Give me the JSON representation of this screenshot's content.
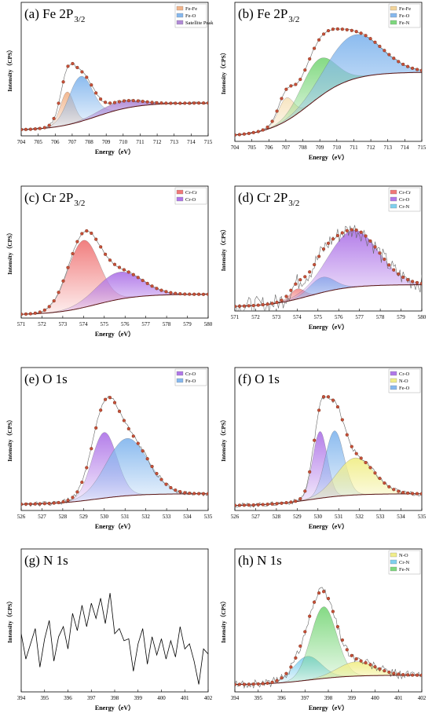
{
  "chart_data": [
    {
      "type": "line",
      "panel": "a",
      "title_main": "(a) Fe 2P",
      "title_sub": "3/2",
      "xlabel": "Energy（eV）",
      "ylabel": "Intensity（CPS）",
      "xlim": [
        704,
        715
      ],
      "xticks": [
        "704",
        "705",
        "706",
        "707",
        "708",
        "709",
        "710",
        "711",
        "712",
        "713",
        "714",
        "715"
      ],
      "legend": [
        {
          "name": "Fe-Fe",
          "color": "#f2b48a"
        },
        {
          "name": "Fe-O",
          "color": "#86b8ee"
        },
        {
          "name": "Satellite Peak",
          "color": "#b08ad6"
        }
      ],
      "legend_position": "top-right",
      "background": [
        0.05,
        0.3
      ],
      "raw_noise": 0.012,
      "peaks": [
        {
          "name": "Fe-Fe",
          "center": 706.7,
          "height": 0.3,
          "width": 0.4,
          "color": "#f2b48a"
        },
        {
          "name": "Fe-O",
          "center": 707.5,
          "height": 0.41,
          "width": 0.7,
          "color": "#86b8ee"
        },
        {
          "name": "Satellite Peak",
          "center": 709.8,
          "height": 0.07,
          "width": 1.2,
          "color": "#b08ad6"
        }
      ]
    },
    {
      "type": "line",
      "panel": "b",
      "title_main": "(b) Fe 2P",
      "title_sub": "3/2",
      "xlabel": "Energy（eV）",
      "ylabel": "Intensity（CPS）",
      "xlim": [
        704,
        715
      ],
      "xticks": [
        "704",
        "705",
        "706",
        "707",
        "708",
        "709",
        "710",
        "711",
        "712",
        "713",
        "714",
        "715"
      ],
      "legend": [
        {
          "name": "Fe-Fe",
          "color": "#f3d49a"
        },
        {
          "name": "Fe-O",
          "color": "#86b8ee"
        },
        {
          "name": "Fe-N",
          "color": "#7ed87e"
        }
      ],
      "legend_position": "top-right",
      "background": [
        0.04,
        0.6
      ],
      "raw_noise": 0.006,
      "peaks": [
        {
          "name": "Fe-Fe",
          "center": 707.0,
          "height": 0.2,
          "width": 0.45,
          "color": "#f3d49a"
        },
        {
          "name": "Fe-N",
          "center": 708.9,
          "height": 0.33,
          "width": 1.0,
          "color": "#7ed87e"
        },
        {
          "name": "Fe-O",
          "center": 711.0,
          "height": 0.38,
          "width": 1.6,
          "color": "#86b8ee"
        }
      ]
    },
    {
      "type": "line",
      "panel": "c",
      "title_main": "(c) Cr 2P",
      "title_sub": "3/2",
      "xlabel": "Energy（eV）",
      "ylabel": "Intensity（CPS）",
      "xlim": [
        571,
        580
      ],
      "xticks": [
        "571",
        "572",
        "573",
        "574",
        "575",
        "576",
        "577",
        "578",
        "579",
        "580"
      ],
      "legend": [
        {
          "name": "Cr-Cr",
          "color": "#f07878"
        },
        {
          "name": "Cr-O",
          "color": "#b078e8"
        }
      ],
      "legend_position": "top-right",
      "background": [
        0.03,
        0.22
      ],
      "raw_noise": 0.006,
      "peaks": [
        {
          "name": "Cr-Cr",
          "center": 574.0,
          "height": 0.62,
          "width": 0.75,
          "color": "#f07878"
        },
        {
          "name": "Cr-O",
          "center": 575.7,
          "height": 0.25,
          "width": 1.1,
          "color": "#b078e8"
        }
      ]
    },
    {
      "type": "line",
      "panel": "d",
      "title_main": "(d) Cr 2P",
      "title_sub": "3/2",
      "xlabel": "Energy（eV）",
      "ylabel": "Intensity（CPS）",
      "xlim": [
        571,
        580
      ],
      "xticks": [
        "571",
        "572",
        "573",
        "574",
        "575",
        "576",
        "577",
        "578",
        "579",
        "580"
      ],
      "legend": [
        {
          "name": "Cr-Cr",
          "color": "#f07878"
        },
        {
          "name": "Cr-O",
          "color": "#b078e8"
        },
        {
          "name": "Cr-N",
          "color": "#7fd0ee"
        }
      ],
      "legend_position": "top-right",
      "background": [
        0.04,
        0.26
      ],
      "raw_noise": 0.09,
      "peaks": [
        {
          "name": "Cr-Cr",
          "center": 574.0,
          "height": 0.1,
          "width": 0.35,
          "color": "#f07878"
        },
        {
          "name": "Cr-N",
          "center": 575.2,
          "height": 0.15,
          "width": 0.6,
          "color": "#7fd0ee"
        },
        {
          "name": "Cr-O",
          "center": 576.7,
          "height": 0.56,
          "width": 1.2,
          "color": "#b078e8"
        }
      ]
    },
    {
      "type": "line",
      "panel": "e",
      "title_main": "(e) O 1s",
      "title_sub": "",
      "xlabel": "Energy（eV）",
      "ylabel": "Intensity（CPS）",
      "xlim": [
        526,
        535
      ],
      "xticks": [
        "526",
        "527",
        "528",
        "529",
        "530",
        "531",
        "532",
        "533",
        "534",
        "535"
      ],
      "legend": [
        {
          "name": "Cr-O",
          "color": "#b078e8"
        },
        {
          "name": "Fe-O",
          "color": "#86b8ee"
        }
      ],
      "legend_position": "top-right",
      "background": [
        0.05,
        0.14
      ],
      "raw_noise": 0.02,
      "peaks": [
        {
          "name": "Cr-O",
          "center": 530.0,
          "height": 0.55,
          "width": 0.6,
          "color": "#b078e8"
        },
        {
          "name": "Fe-O",
          "center": 531.1,
          "height": 0.48,
          "width": 1.0,
          "color": "#86b8ee"
        }
      ]
    },
    {
      "type": "line",
      "panel": "f",
      "title_main": "(f) O 1s",
      "title_sub": "",
      "xlabel": "Energy（eV）",
      "ylabel": "Intensity（CPS）",
      "xlim": [
        526,
        535
      ],
      "xticks": [
        "526",
        "527",
        "528",
        "529",
        "530",
        "531",
        "532",
        "533",
        "534",
        "535"
      ],
      "legend": [
        {
          "name": "Cr-O",
          "color": "#b078e8"
        },
        {
          "name": "N-O",
          "color": "#f1ee8a"
        },
        {
          "name": "Fe-O",
          "color": "#86b8ee"
        }
      ],
      "legend_position": "top-right",
      "background": [
        0.04,
        0.14
      ],
      "raw_noise": 0.02,
      "peaks": [
        {
          "name": "Cr-O",
          "center": 530.1,
          "height": 0.56,
          "width": 0.35,
          "color": "#b078e8"
        },
        {
          "name": "Fe-O",
          "center": 530.8,
          "height": 0.55,
          "width": 0.45,
          "color": "#86b8ee"
        },
        {
          "name": "N-O",
          "center": 531.8,
          "height": 0.31,
          "width": 0.9,
          "color": "#f1ee8a"
        }
      ]
    },
    {
      "type": "line",
      "panel": "g",
      "title_main": "(g) N 1s",
      "title_sub": "",
      "xlabel": "Energy（eV）",
      "ylabel": "Intensity（CPS）",
      "xlim": [
        394,
        402
      ],
      "xticks": [
        "394",
        "395",
        "396",
        "397",
        "398",
        "399",
        "400",
        "401",
        "402"
      ],
      "legend": [],
      "raw_only": true,
      "raw_x": [
        394.0,
        394.2,
        394.4,
        394.6,
        394.8,
        395.0,
        395.2,
        395.4,
        395.6,
        395.8,
        396.0,
        396.2,
        396.4,
        396.6,
        396.8,
        397.0,
        397.2,
        397.4,
        397.6,
        397.8,
        398.0,
        398.2,
        398.4,
        398.6,
        398.8,
        399.0,
        399.2,
        399.4,
        399.6,
        399.8,
        400.0,
        400.2,
        400.4,
        400.6,
        400.8,
        401.0,
        401.2,
        401.4,
        401.6,
        401.8,
        402.0
      ],
      "raw_y": [
        0.55,
        0.3,
        0.45,
        0.6,
        0.22,
        0.5,
        0.68,
        0.28,
        0.52,
        0.62,
        0.4,
        0.75,
        0.58,
        0.83,
        0.62,
        0.85,
        0.7,
        0.9,
        0.65,
        0.95,
        0.55,
        0.6,
        0.48,
        0.5,
        0.18,
        0.45,
        0.6,
        0.25,
        0.52,
        0.34,
        0.5,
        0.3,
        0.48,
        0.32,
        0.62,
        0.4,
        0.45,
        0.28,
        0.05,
        0.4,
        0.35
      ]
    },
    {
      "type": "line",
      "panel": "h",
      "title_main": "(h) N 1s",
      "title_sub": "",
      "xlabel": "Energy（eV）",
      "ylabel": "Intensity（CPS）",
      "xlim": [
        394,
        402
      ],
      "xticks": [
        "394",
        "395",
        "396",
        "397",
        "398",
        "399",
        "400",
        "401",
        "402"
      ],
      "legend": [
        {
          "name": "N-O",
          "color": "#f1ee8a"
        },
        {
          "name": "Cr-N",
          "color": "#7fd0ee"
        },
        {
          "name": "Fe-N",
          "color": "#7ed87e"
        }
      ],
      "legend_position": "top-right",
      "background": [
        0.06,
        0.14
      ],
      "raw_noise": 0.04,
      "peaks": [
        {
          "name": "Cr-N",
          "center": 397.1,
          "height": 0.2,
          "width": 0.6,
          "color": "#7fd0ee"
        },
        {
          "name": "Fe-N",
          "center": 397.8,
          "height": 0.6,
          "width": 0.55,
          "color": "#7ed87e"
        },
        {
          "name": "N-O",
          "center": 399.2,
          "height": 0.12,
          "width": 0.8,
          "color": "#f1ee8a"
        }
      ]
    }
  ]
}
